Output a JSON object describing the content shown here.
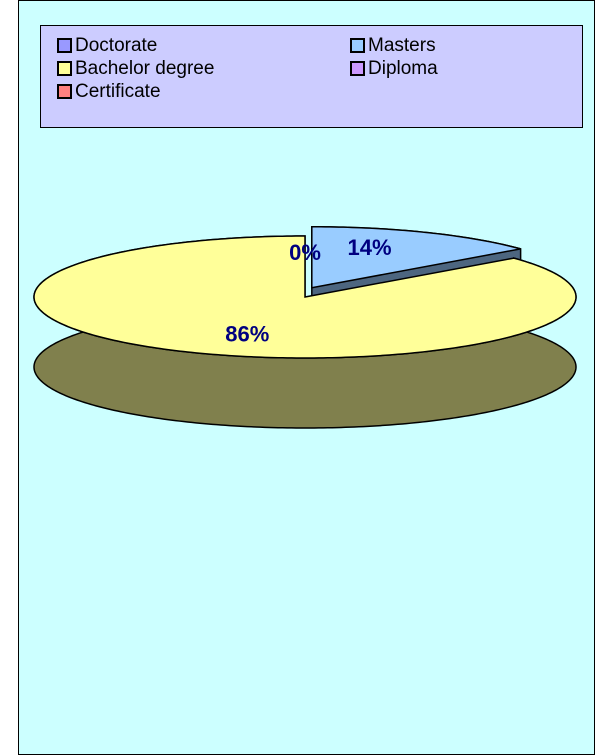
{
  "chart_data": {
    "type": "pie",
    "categories": [
      "Doctorate",
      "Masters",
      "Bachelor degree",
      "Diploma",
      "Certificate"
    ],
    "values": [
      0,
      14,
      86,
      0,
      0
    ],
    "value_labels": [
      "0%",
      "14%",
      "86%",
      null,
      null
    ],
    "colors": [
      "#9999FF",
      "#99CCFF",
      "#FFFF99",
      "#CC99FF",
      "#FF8080"
    ],
    "exploded": "Masters",
    "legend": "top"
  }
}
